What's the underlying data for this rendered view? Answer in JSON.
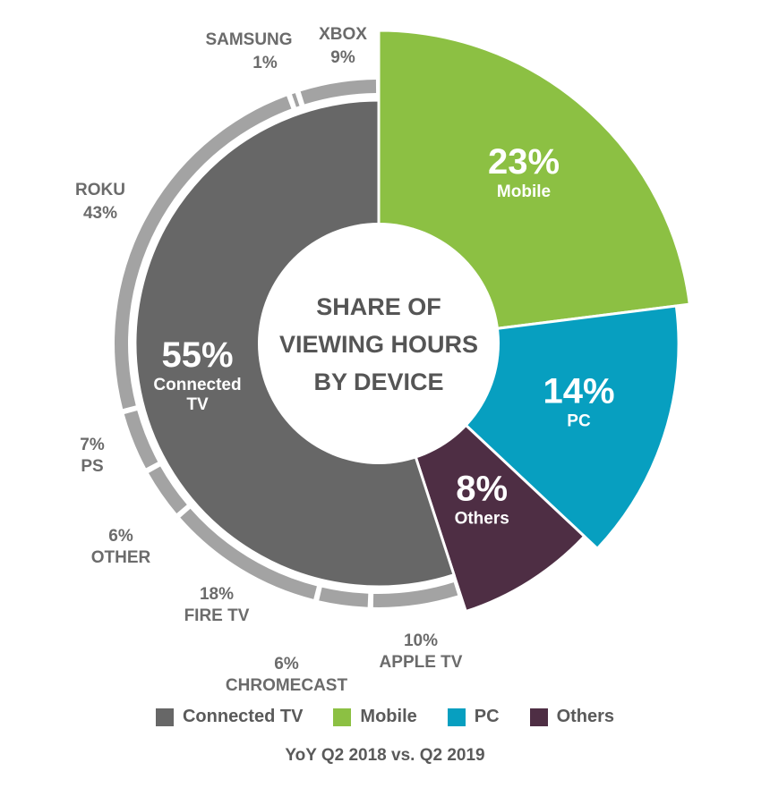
{
  "chart_data": {
    "type": "pie",
    "title": "SHARE OF VIEWING HOURS BY DEVICE",
    "title_lines": [
      "SHARE OF",
      "VIEWING HOURS",
      "BY DEVICE"
    ],
    "subtitle": "YoY Q2 2018 vs. Q2 2019",
    "slices": [
      {
        "name": "Mobile",
        "value": 23,
        "pct_label": "23%",
        "label_lines": [
          "Mobile"
        ],
        "color": "#8cc043"
      },
      {
        "name": "PC",
        "value": 14,
        "pct_label": "14%",
        "label_lines": [
          "PC"
        ],
        "color": "#079fc0"
      },
      {
        "name": "Others",
        "value": 8,
        "pct_label": "8%",
        "label_lines": [
          "Others"
        ],
        "color": "#4e2e44"
      },
      {
        "name": "Connected TV",
        "value": 55,
        "pct_label": "55%",
        "label_lines": [
          "Connected",
          "TV"
        ],
        "color": "#676767"
      }
    ],
    "sub_breakdown": {
      "parent": "Connected TV",
      "color": "#a3a3a3",
      "segments": [
        {
          "name": "APPLE TV",
          "value": 10,
          "pct_label": "10%"
        },
        {
          "name": "CHROMECAST",
          "value": 6,
          "pct_label": "6%"
        },
        {
          "name": "FIRE TV",
          "value": 18,
          "pct_label": "18%"
        },
        {
          "name": "OTHER",
          "value": 6,
          "pct_label": "6%"
        },
        {
          "name": "PS",
          "value": 7,
          "pct_label": "7%"
        },
        {
          "name": "ROKU",
          "value": 43,
          "pct_label": "43%"
        },
        {
          "name": "SAMSUNG",
          "value": 1,
          "pct_label": "1%"
        },
        {
          "name": "XBOX",
          "value": 9,
          "pct_label": "9%"
        }
      ]
    },
    "legend": [
      {
        "label": "Connected TV",
        "color": "#676767"
      },
      {
        "label": "Mobile",
        "color": "#8cc043"
      },
      {
        "label": "PC",
        "color": "#079fc0"
      },
      {
        "label": "Others",
        "color": "#4e2e44"
      }
    ],
    "legend_position": "bottom"
  }
}
